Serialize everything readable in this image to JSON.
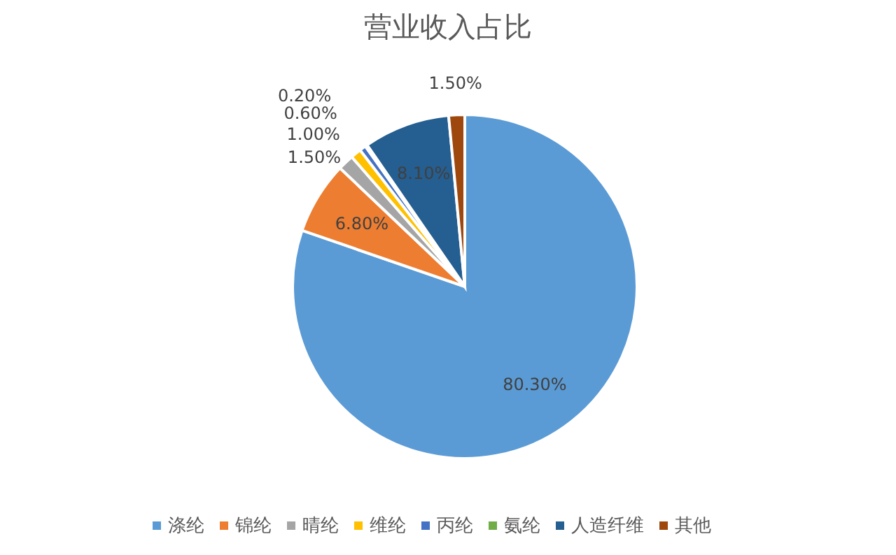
{
  "chart_data": {
    "type": "pie",
    "title": "营业收入占比",
    "categories": [
      "涤纶",
      "锦纶",
      "晴纶",
      "维纶",
      "丙纶",
      "氨纶",
      "人造纤维",
      "其他"
    ],
    "values": [
      80.3,
      6.8,
      1.5,
      1.0,
      0.6,
      0.2,
      8.1,
      1.5
    ],
    "value_labels": [
      "80.30%",
      "6.80%",
      "1.50%",
      "1.00%",
      "0.60%",
      "0.20%",
      "8.10%",
      "1.50%"
    ],
    "colors": [
      "#5b9bd5",
      "#ed7d31",
      "#a5a5a5",
      "#ffc000",
      "#4472c4",
      "#70ad47",
      "#255e91",
      "#9e480e"
    ],
    "legend": "bottom"
  }
}
